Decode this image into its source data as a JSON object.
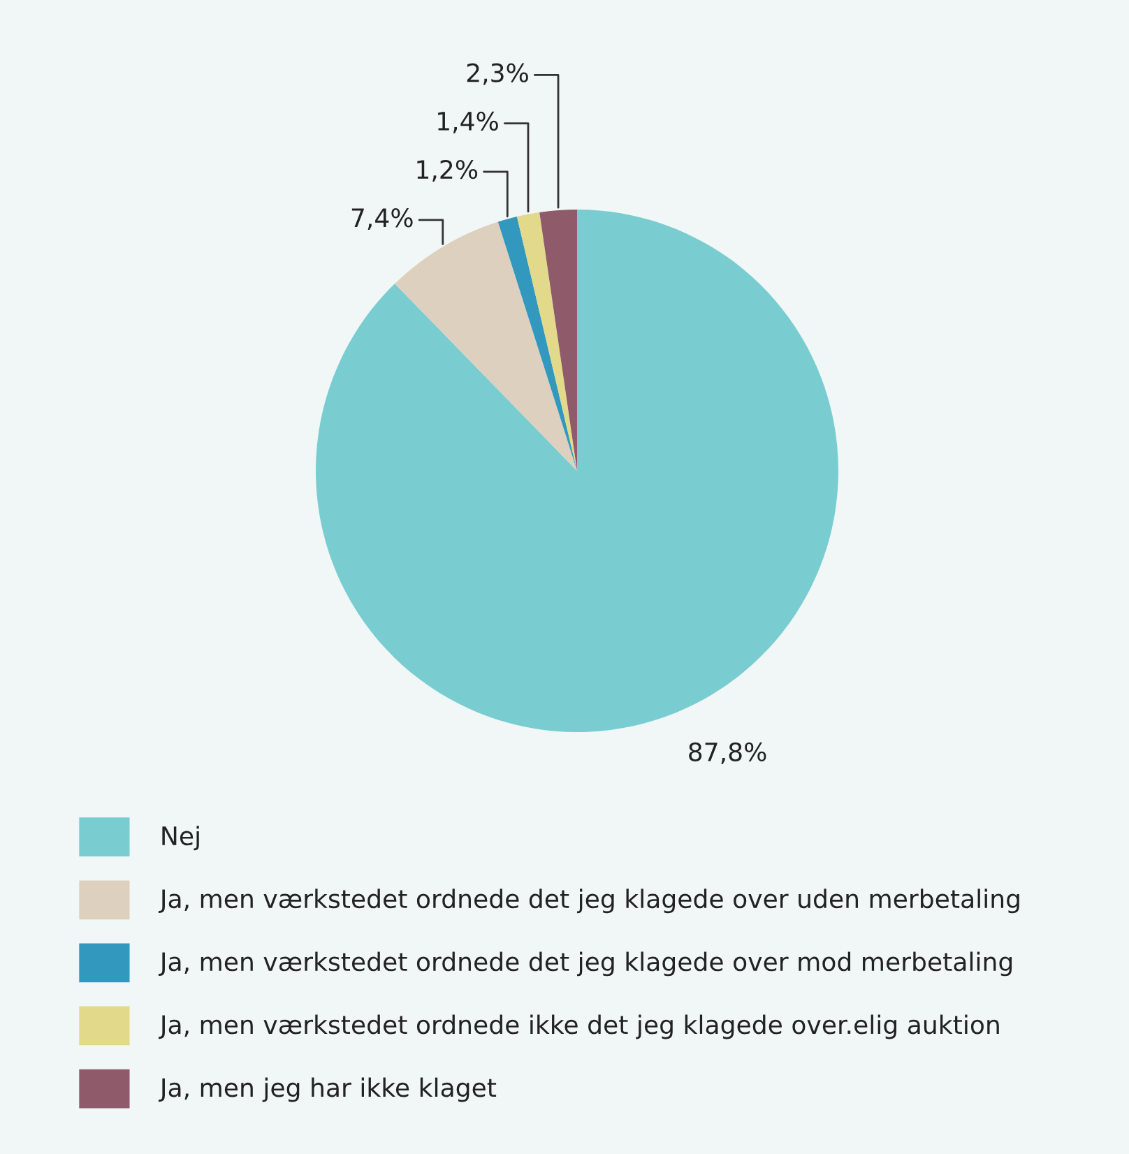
{
  "chart_data": {
    "type": "pie",
    "categories": [
      "Nej",
      "Ja, men værkstedet ordnede det jeg klagede over uden merbetaling",
      "Ja, men værkstedet ordnede det jeg klagede over mod merbetaling",
      "Ja, men værkstedet ordnede ikke det jeg klagede over.elig auktion",
      "Ja, men jeg har ikke klaget"
    ],
    "values": [
      87.8,
      7.4,
      1.2,
      1.4,
      2.3
    ],
    "value_labels": [
      "87,8%",
      "7,4%",
      "1,2%",
      "1,4%",
      "2,3%"
    ],
    "colors": [
      "#79cdd0",
      "#ded0bf",
      "#3398be",
      "#e2d98a",
      "#8f5a6a"
    ],
    "legend": "bottom"
  }
}
